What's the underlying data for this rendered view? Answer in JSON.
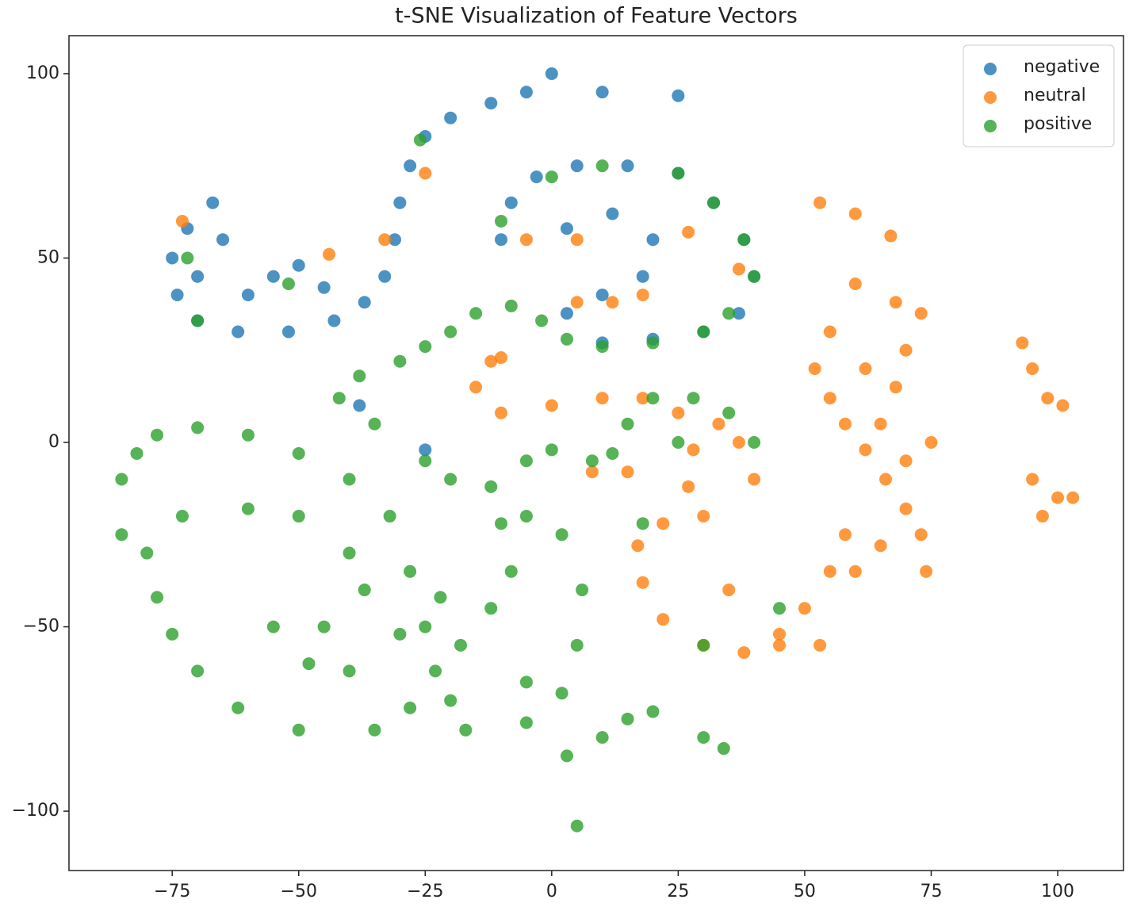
{
  "chart_data": {
    "type": "scatter",
    "title": "t-SNE Visualization of Feature Vectors",
    "xlim": [
      -95.4,
      113.0
    ],
    "ylim": [
      -116.1,
      110.3
    ],
    "xticks": [
      {
        "value": -75,
        "label": "−75"
      },
      {
        "value": -50,
        "label": "−50"
      },
      {
        "value": -25,
        "label": "−25"
      },
      0,
      25,
      50,
      75,
      100
    ],
    "yticks": [
      {
        "value": -100,
        "label": "−100"
      },
      {
        "value": -50,
        "label": "−50"
      },
      0,
      50,
      100
    ],
    "legend": "upper right",
    "series": [
      {
        "name": "negative",
        "color": "#1f77b4",
        "x": [
          -67,
          -72,
          -75,
          -74,
          -70,
          -62,
          -52,
          -43,
          -37,
          -33,
          -31,
          -30,
          -28,
          -25,
          -20,
          -12,
          -5,
          0,
          10,
          25,
          -55,
          -45,
          -60,
          -50,
          -65,
          -70,
          -10,
          -8,
          -3,
          5,
          15,
          25,
          32,
          38,
          40,
          37,
          30,
          20,
          10,
          3,
          10,
          18,
          20,
          12,
          3,
          -38,
          -25
        ],
        "values": [
          65,
          58,
          50,
          40,
          33,
          30,
          30,
          33,
          38,
          45,
          55,
          65,
          75,
          83,
          88,
          92,
          95,
          100,
          95,
          94,
          45,
          42,
          40,
          48,
          55,
          45,
          55,
          65,
          72,
          75,
          75,
          73,
          65,
          55,
          45,
          35,
          30,
          28,
          27,
          35,
          40,
          45,
          55,
          62,
          58,
          10,
          -2
        ]
      },
      {
        "name": "neutral",
        "color": "#ff7f0e",
        "x": [
          53,
          60,
          67,
          60,
          68,
          73,
          55,
          52,
          55,
          58,
          62,
          66,
          70,
          73,
          74,
          65,
          58,
          55,
          50,
          45,
          38,
          30,
          22,
          18,
          17,
          22,
          27,
          28,
          25,
          18,
          10,
          0,
          -10,
          -15,
          -12,
          8,
          15,
          62,
          70,
          75,
          65,
          40,
          37,
          33,
          30,
          35,
          45,
          53,
          60,
          70,
          68,
          93,
          95,
          98,
          101,
          95,
          100,
          97,
          103,
          5,
          12,
          18,
          -5,
          5,
          27,
          -33,
          -44,
          -73,
          -25,
          -10,
          37
        ],
        "values": [
          65,
          62,
          56,
          43,
          38,
          35,
          30,
          20,
          12,
          5,
          -2,
          -10,
          -18,
          -25,
          -35,
          -28,
          -25,
          -35,
          -45,
          -52,
          -57,
          -55,
          -48,
          -38,
          -28,
          -22,
          -12,
          -2,
          8,
          12,
          12,
          10,
          8,
          15,
          22,
          -8,
          -8,
          20,
          25,
          0,
          5,
          -10,
          0,
          5,
          -20,
          -40,
          -55,
          -55,
          -35,
          -5,
          15,
          27,
          20,
          12,
          10,
          -10,
          -15,
          -20,
          -15,
          38,
          38,
          40,
          55,
          55,
          57,
          55,
          51,
          60,
          73,
          23,
          47
        ]
      },
      {
        "name": "positive",
        "color": "#2ca02c",
        "x": [
          -35,
          -42,
          -38,
          -30,
          -25,
          -20,
          -15,
          -8,
          -2,
          3,
          10,
          20,
          30,
          35,
          40,
          38,
          32,
          25,
          10,
          0,
          -10,
          -25,
          -20,
          -12,
          -5,
          0,
          8,
          12,
          15,
          20,
          28,
          35,
          40,
          25,
          -85,
          -82,
          -78,
          -70,
          -60,
          -50,
          -40,
          -32,
          -28,
          -25,
          -23,
          -28,
          -35,
          -50,
          -62,
          -70,
          -75,
          -78,
          -80,
          -85,
          -73,
          -60,
          -50,
          -40,
          -37,
          -45,
          -55,
          -48,
          -40,
          -30,
          -22,
          -18,
          -12,
          -8,
          -10,
          -5,
          2,
          6,
          5,
          2,
          -5,
          -17,
          -20,
          -5,
          3,
          10,
          15,
          20,
          30,
          34,
          5,
          -72,
          -70,
          -52,
          -26,
          45,
          18,
          30
        ],
        "values": [
          5,
          12,
          18,
          22,
          26,
          30,
          35,
          37,
          33,
          28,
          26,
          27,
          30,
          35,
          45,
          55,
          65,
          73,
          75,
          72,
          60,
          -5,
          -10,
          -12,
          -5,
          -2,
          -5,
          -3,
          5,
          12,
          12,
          8,
          0,
          0,
          -10,
          -3,
          2,
          4,
          2,
          -3,
          -10,
          -20,
          -35,
          -50,
          -62,
          -72,
          -78,
          -78,
          -72,
          -62,
          -52,
          -42,
          -30,
          -25,
          -20,
          -18,
          -20,
          -30,
          -40,
          -50,
          -50,
          -60,
          -62,
          -52,
          -42,
          -55,
          -45,
          -35,
          -22,
          -20,
          -25,
          -40,
          -55,
          -68,
          -76,
          -78,
          -70,
          -65,
          -85,
          -80,
          -75,
          -73,
          -80,
          -83,
          -104,
          50,
          33,
          43,
          82,
          -45,
          -22,
          -55
        ]
      }
    ]
  }
}
